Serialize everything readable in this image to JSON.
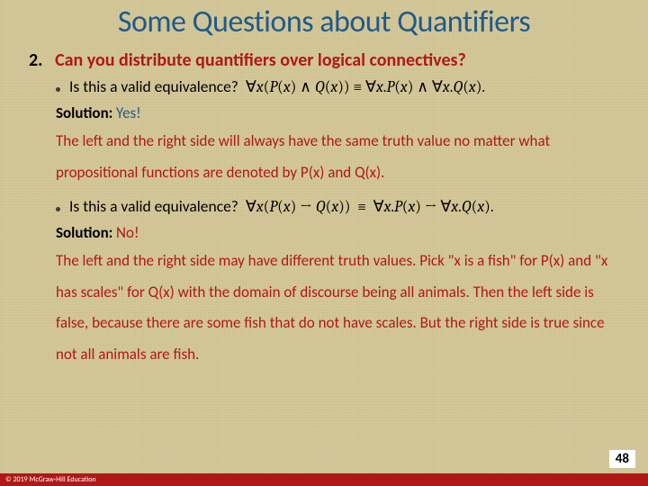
{
  "colors": {
    "title": "#1f5a8a",
    "accent_red": "#b01818",
    "text": "#000000",
    "background": "#d4c89a",
    "footer_bg": "#b01818",
    "footer_text": "#ffffff",
    "pagenum_bg": "#ffffff"
  },
  "typography": {
    "title_fontsize": 34,
    "body_fontsize": 17,
    "question_fontsize": 20,
    "font_family": "Calibri"
  },
  "slide": {
    "title": "Some Questions about Quantifiers",
    "question_number": "2.",
    "question_text": "Can you distribute quantifiers over logical connectives?",
    "items": [
      {
        "prompt": "Is this a valid equivalence?",
        "formula": "∀x(P(x) ∧ Q(x)) ≡ ∀x.P(x) ∧ ∀x.Q(x).",
        "solution_label": "Solution:",
        "answer": "Yes!",
        "answer_style": "yes",
        "explanation": "The left and the right side will always have the same truth value no matter what propositional functions are denoted by P(x) and Q(x)."
      },
      {
        "prompt": "Is this a valid equivalence?",
        "formula": "∀x(P(x) → Q(x)) ≡ ∀x.P(x) → ∀x.Q(x).",
        "solution_label": "Solution:",
        "answer": "No!",
        "answer_style": "no",
        "explanation": "The left and the right side may have different truth values. Pick \"x is a fish\" for P(x) and \"x has scales\" for Q(x) with the domain of discourse being all animals. Then the left side is false, because there are some fish that do not have scales. But the right side is true since not all animals are fish."
      }
    ],
    "page_number": "48",
    "copyright": "© 2019 McGraw-Hill Education"
  }
}
